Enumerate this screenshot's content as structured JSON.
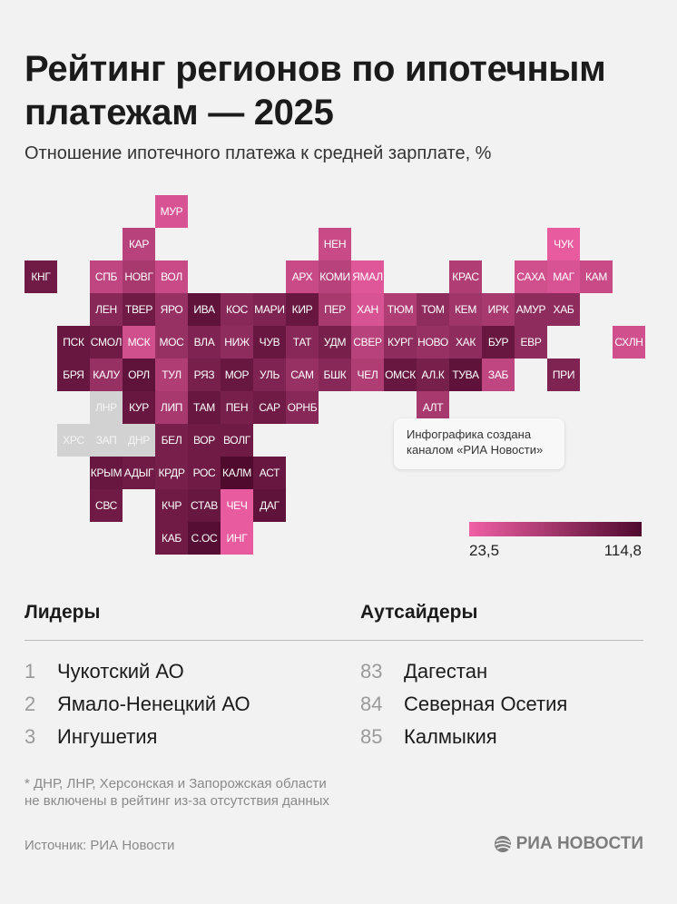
{
  "header": {
    "title": "Рейтинг регионов по ипотечным платежам — 2025",
    "subtitle": "Отношение ипотечного платежа к средней зарплате, %"
  },
  "map": {
    "color_light": "#f060a5",
    "color_dark": "#4f0a2e",
    "color_excluded": "#d2d2d2",
    "regions": [
      {
        "code": "МУР",
        "shade": 0.15
      },
      {
        "code": "КАР",
        "shade": 0.35
      },
      {
        "code": "НЕН",
        "shade": 0.25
      },
      {
        "code": "ЧУК",
        "shade": 0.05
      },
      {
        "code": "КНГ",
        "shade": 0.8
      },
      {
        "code": "СПБ",
        "shade": 0.3
      },
      {
        "code": "НОВГ",
        "shade": 0.45
      },
      {
        "code": "ВОЛ",
        "shade": 0.25
      },
      {
        "code": "АРХ",
        "shade": 0.25
      },
      {
        "code": "КОМИ",
        "shade": 0.35
      },
      {
        "code": "ЯМАЛ",
        "shade": 0.1
      },
      {
        "code": "КРАС",
        "shade": 0.4
      },
      {
        "code": "САХА",
        "shade": 0.2
      },
      {
        "code": "МАГ",
        "shade": 0.15
      },
      {
        "code": "КАМ",
        "shade": 0.25
      },
      {
        "code": "ЛЕН",
        "shade": 0.65
      },
      {
        "code": "ТВЕР",
        "shade": 0.8
      },
      {
        "code": "ЯРО",
        "shade": 0.55
      },
      {
        "code": "ИВА",
        "shade": 0.9
      },
      {
        "code": "КОС",
        "shade": 0.65
      },
      {
        "code": "МАРИ",
        "shade": 0.7
      },
      {
        "code": "КИР",
        "shade": 0.85
      },
      {
        "code": "ПЕР",
        "shade": 0.45
      },
      {
        "code": "ХАН",
        "shade": 0.15
      },
      {
        "code": "ТЮМ",
        "shade": 0.4
      },
      {
        "code": "ТОМ",
        "shade": 0.6
      },
      {
        "code": "КЕМ",
        "shade": 0.5
      },
      {
        "code": "ИРК",
        "shade": 0.45
      },
      {
        "code": "АМУР",
        "shade": 0.6
      },
      {
        "code": "ХАБ",
        "shade": 0.6
      },
      {
        "code": "ПСК",
        "shade": 0.85
      },
      {
        "code": "СМОЛ",
        "shade": 0.8
      },
      {
        "code": "МСК",
        "shade": 0.2
      },
      {
        "code": "МОС",
        "shade": 0.55
      },
      {
        "code": "ВЛА",
        "shade": 0.7
      },
      {
        "code": "НИЖ",
        "shade": 0.6
      },
      {
        "code": "ЧУВ",
        "shade": 0.85
      },
      {
        "code": "ТАТ",
        "shade": 0.65
      },
      {
        "code": "УДМ",
        "shade": 0.75
      },
      {
        "code": "СВЕР",
        "shade": 0.35
      },
      {
        "code": "КУРГ",
        "shade": 0.6
      },
      {
        "code": "НОВО",
        "shade": 0.55
      },
      {
        "code": "ХАК",
        "shade": 0.6
      },
      {
        "code": "БУР",
        "shade": 0.85
      },
      {
        "code": "ЕВР",
        "shade": 0.6
      },
      {
        "code": "СХЛН",
        "shade": 0.2
      },
      {
        "code": "БРЯ",
        "shade": 0.85
      },
      {
        "code": "КАЛУ",
        "shade": 0.55
      },
      {
        "code": "ОРЛ",
        "shade": 0.9
      },
      {
        "code": "ТУЛ",
        "shade": 0.4
      },
      {
        "code": "РЯЗ",
        "shade": 0.75
      },
      {
        "code": "МОР",
        "shade": 0.85
      },
      {
        "code": "УЛЬ",
        "shade": 0.7
      },
      {
        "code": "САМ",
        "shade": 0.55
      },
      {
        "code": "БШК",
        "shade": 0.65
      },
      {
        "code": "ЧЕЛ",
        "shade": 0.4
      },
      {
        "code": "ОМСК",
        "shade": 0.85
      },
      {
        "code": "АЛ.К",
        "shade": 0.75
      },
      {
        "code": "ТУВА",
        "shade": 0.9
      },
      {
        "code": "ЗАБ",
        "shade": 0.3
      },
      {
        "code": "ПРИ",
        "shade": 0.7
      },
      {
        "code": "КУР",
        "shade": 0.85
      },
      {
        "code": "ЛИП",
        "shade": 0.45
      },
      {
        "code": "ТАМ",
        "shade": 0.85
      },
      {
        "code": "ПЕН",
        "shade": 0.75
      },
      {
        "code": "САР",
        "shade": 0.8
      },
      {
        "code": "ОРНБ",
        "shade": 0.65
      },
      {
        "code": "АЛТ",
        "shade": 0.45
      },
      {
        "code": "БЕЛ",
        "shade": 0.75
      },
      {
        "code": "ВОР",
        "shade": 0.8
      },
      {
        "code": "ВОЛГ",
        "shade": 0.8
      },
      {
        "code": "КРЫМ",
        "shade": 0.85
      },
      {
        "code": "АДЫГ",
        "shade": 0.8
      },
      {
        "code": "КРДР",
        "shade": 0.75
      },
      {
        "code": "РОС",
        "shade": 0.8
      },
      {
        "code": "КАЛМ",
        "shade": 1.0
      },
      {
        "code": "АСТ",
        "shade": 0.85
      },
      {
        "code": "СВС",
        "shade": 0.8
      },
      {
        "code": "КЧР",
        "shade": 0.8
      },
      {
        "code": "СТАВ",
        "shade": 0.85
      },
      {
        "code": "ЧЕЧ",
        "shade": 0.05
      },
      {
        "code": "ДАГ",
        "shade": 0.9
      },
      {
        "code": "КАБ",
        "shade": 0.8
      },
      {
        "code": "С.ОС",
        "shade": 0.95
      },
      {
        "code": "ИНГ",
        "shade": 0.05
      }
    ],
    "excluded": [
      "ЛНР",
      "ХРС",
      "ЗАП",
      "ДНР"
    ]
  },
  "note": "Инфографика создана каналом «РИА Новости»",
  "legend": {
    "min": "23,5",
    "max": "114,8"
  },
  "leaders": {
    "heading": "Лидеры",
    "items": [
      {
        "rank": "1",
        "name": "Чукотский АО"
      },
      {
        "rank": "2",
        "name": "Ямало-Ненецкий АО"
      },
      {
        "rank": "3",
        "name": "Ингушетия"
      }
    ]
  },
  "outsiders": {
    "heading": "Аутсайдеры",
    "items": [
      {
        "rank": "83",
        "name": "Дагестан"
      },
      {
        "rank": "84",
        "name": "Северная Осетия"
      },
      {
        "rank": "85",
        "name": "Калмыкия"
      }
    ]
  },
  "footnote_line1": "* ДНР, ЛНР, Херсонская и Запорожская области",
  "footnote_line2": "не включены в рейтинг из-за отсутствия данных",
  "source": "Источник: РИА Новости",
  "logo_text": "РИА НОВОСТИ"
}
